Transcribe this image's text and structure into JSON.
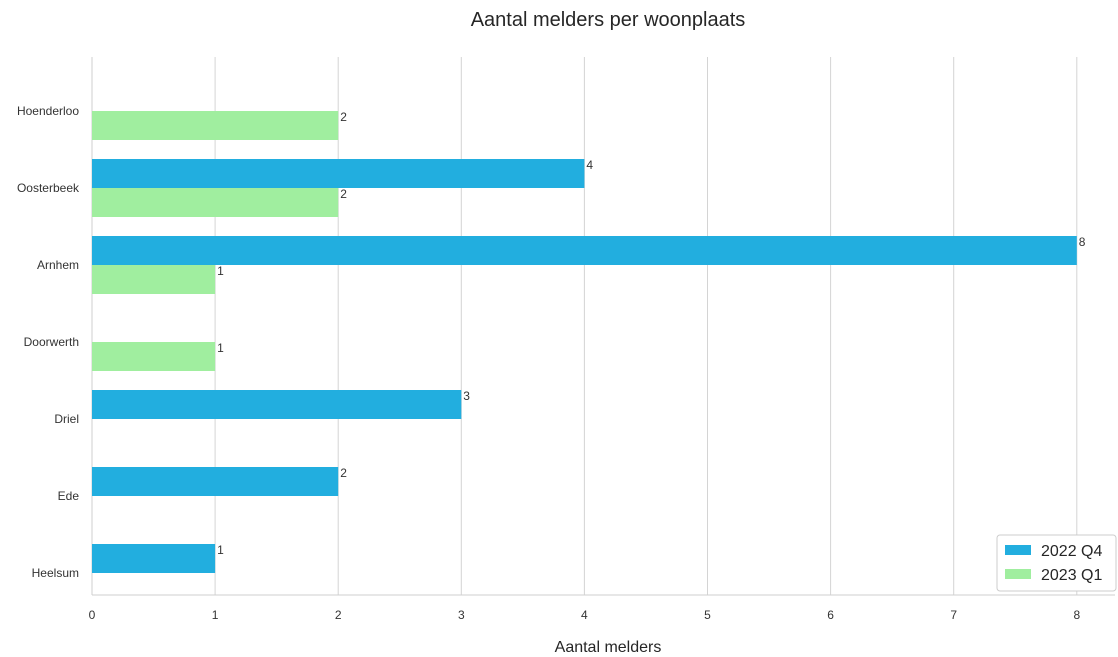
{
  "chart_data": {
    "type": "bar",
    "orientation": "horizontal",
    "title": "Aantal melders per woonplaats",
    "xlabel": "Aantal melders",
    "ylabel": "",
    "categories": [
      "Hoenderloo",
      "Oosterbeek",
      "Arnhem",
      "Doorwerth",
      "Driel",
      "Ede",
      "Heelsum"
    ],
    "series": [
      {
        "name": "2022 Q4",
        "color": "#22aedf",
        "values": [
          null,
          4,
          8,
          null,
          3,
          2,
          1
        ]
      },
      {
        "name": "2023 Q1",
        "color": "#a0ee9f",
        "values": [
          2,
          2,
          1,
          1,
          null,
          null,
          null
        ]
      }
    ],
    "xlim": [
      0,
      8.3
    ],
    "xticks": [
      0,
      1,
      2,
      3,
      4,
      5,
      6,
      7,
      8
    ],
    "grid": "vertical",
    "legend_position": "bottom-right"
  }
}
